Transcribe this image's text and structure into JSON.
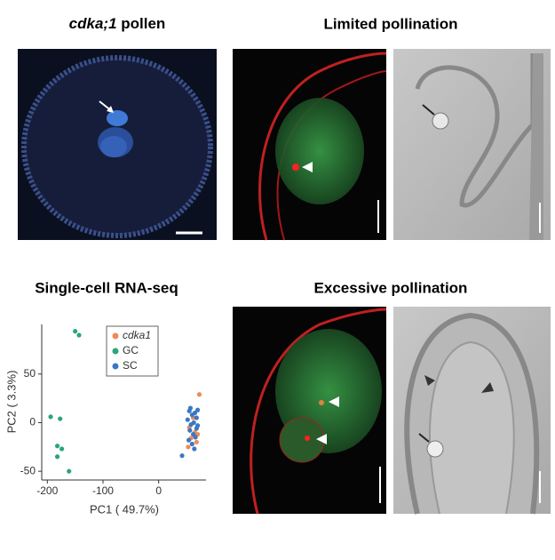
{
  "panels": [
    {
      "title_italic": "cdka;1",
      "title_rest": "pollen"
    },
    {
      "title": "Limited pollination"
    },
    {
      "title": "Single-cell RNA-seq"
    },
    {
      "title": "Excessive pollination"
    }
  ],
  "chart_data": {
    "type": "scatter",
    "xlabel": "PC1 ( 49.7%)",
    "ylabel": "PC2 ( 3.3%)",
    "xlim": [
      -210,
      85
    ],
    "ylim": [
      -59,
      101
    ],
    "xticks": [
      -200,
      -100,
      0
    ],
    "yticks": [
      -50,
      0,
      50
    ],
    "series": [
      {
        "name": "cdka1",
        "color": "#f08a57",
        "x": [
          73,
          55,
          65,
          58,
          68,
          62,
          53,
          70
        ],
        "values": [
          29,
          -5,
          -10,
          -16,
          -20,
          5,
          -25,
          -12
        ]
      },
      {
        "name": "GC",
        "color": "#2ba677",
        "x": [
          -150,
          -143,
          -194,
          -177,
          -182,
          -174,
          -182,
          -161
        ],
        "values": [
          94,
          90,
          6,
          4,
          -24,
          -27,
          -35,
          -50
        ]
      },
      {
        "name": "SC",
        "color": "#3a78c4",
        "x": [
          55,
          60,
          65,
          68,
          52,
          58,
          63,
          70,
          56,
          62,
          66,
          54,
          60,
          68,
          57,
          64,
          42,
          70
        ],
        "values": [
          12,
          8,
          10,
          5,
          3,
          -2,
          0,
          -3,
          -8,
          -12,
          -15,
          -18,
          -22,
          -6,
          15,
          -27,
          -34,
          13
        ]
      }
    ]
  }
}
